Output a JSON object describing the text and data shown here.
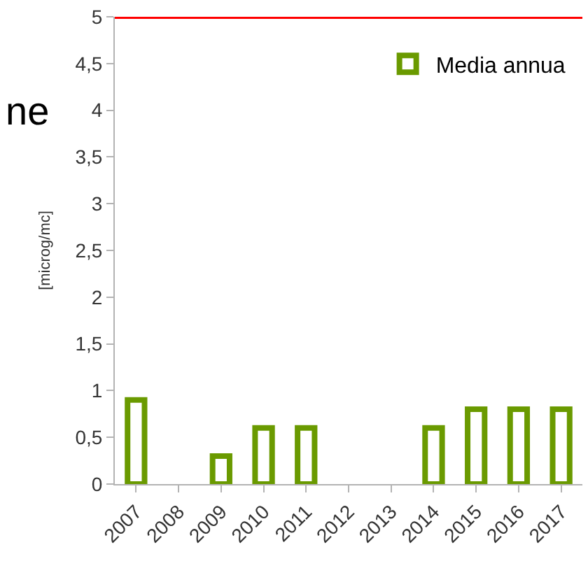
{
  "chart_data": {
    "type": "bar",
    "ylabel": "[microg/mc]",
    "annotations": [
      "ne"
    ],
    "categories": [
      "2007",
      "2008",
      "2009",
      "2010",
      "2011",
      "2012",
      "2013",
      "2014",
      "2015",
      "2016",
      "2017"
    ],
    "series": [
      {
        "name": "Media annua",
        "color": "#6a9a00",
        "values": [
          0.9,
          null,
          0.3,
          0.6,
          0.6,
          null,
          null,
          0.6,
          0.8,
          0.8,
          0.8
        ]
      }
    ],
    "ylim": [
      0,
      5
    ],
    "yticks": [
      0,
      {
        "value": 0.5,
        "label": "0,5"
      },
      1,
      {
        "value": 1.5,
        "label": "1,5"
      },
      2,
      {
        "value": 2.5,
        "label": "2,5"
      },
      3,
      {
        "value": 3.5,
        "label": "3,5"
      },
      4,
      {
        "value": 4.5,
        "label": "4,5"
      },
      5
    ],
    "ref_lines": [
      {
        "axis": "y",
        "value": 5,
        "color": "#ff0000"
      }
    ],
    "legend": "top right"
  }
}
